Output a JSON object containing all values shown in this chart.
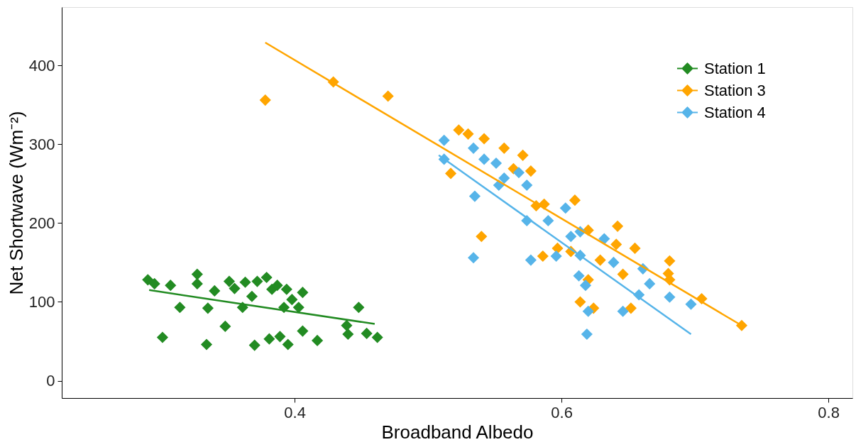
{
  "chart_data": {
    "type": "scatter",
    "xlabel": "Broadband Albedo",
    "ylabel": "Net Shortwave (Wm⁻²)",
    "xlim": [
      0.2255,
      0.818
    ],
    "ylim": [
      -22,
      474
    ],
    "xticks": [
      0.4,
      0.6,
      0.8
    ],
    "yticks": [
      0,
      100,
      200,
      300,
      400
    ],
    "grid": false,
    "legend": "top right",
    "marker": "diamond",
    "series": [
      {
        "name": "Station 1",
        "color": "#228b22",
        "x": [
          0.29,
          0.295,
          0.307,
          0.327,
          0.327,
          0.314,
          0.301,
          0.334,
          0.335,
          0.34,
          0.348,
          0.351,
          0.355,
          0.363,
          0.368,
          0.361,
          0.372,
          0.379,
          0.383,
          0.387,
          0.394,
          0.406,
          0.392,
          0.403,
          0.398,
          0.37,
          0.381,
          0.389,
          0.395,
          0.406,
          0.417,
          0.448,
          0.439,
          0.44,
          0.454,
          0.462
        ],
        "values": [
          128,
          123,
          121,
          135,
          123,
          93,
          55,
          46,
          92,
          114,
          69,
          126,
          117,
          125,
          107,
          93,
          126,
          131,
          116,
          121,
          116,
          112,
          93,
          93,
          103,
          45,
          53,
          56,
          46,
          63,
          51,
          93,
          70,
          59,
          60,
          55
        ]
      },
      {
        "name": "Station 3",
        "color": "#ffa500",
        "x": [
          0.378,
          0.429,
          0.47,
          0.523,
          0.53,
          0.542,
          0.557,
          0.571,
          0.577,
          0.564,
          0.517,
          0.581,
          0.587,
          0.54,
          0.61,
          0.586,
          0.597,
          0.607,
          0.62,
          0.62,
          0.614,
          0.642,
          0.655,
          0.641,
          0.646,
          0.681,
          0.68,
          0.681,
          0.705,
          0.735,
          0.624,
          0.652,
          0.629
        ],
        "values": [
          356,
          379,
          361,
          318,
          313,
          307,
          295,
          286,
          266,
          269,
          263,
          222,
          224,
          183,
          229,
          158,
          168,
          164,
          191,
          128,
          100,
          196,
          168,
          173,
          135,
          152,
          136,
          128,
          104,
          70,
          92,
          92,
          153
        ]
      },
      {
        "name": "Station 4",
        "color": "#56b4e9",
        "x": [
          0.512,
          0.512,
          0.534,
          0.542,
          0.551,
          0.557,
          0.568,
          0.574,
          0.553,
          0.535,
          0.574,
          0.59,
          0.534,
          0.603,
          0.577,
          0.596,
          0.607,
          0.614,
          0.613,
          0.618,
          0.62,
          0.619,
          0.614,
          0.632,
          0.639,
          0.661,
          0.666,
          0.658,
          0.681,
          0.697,
          0.646
        ],
        "values": [
          305,
          281,
          295,
          281,
          276,
          257,
          264,
          248,
          248,
          234,
          203,
          203,
          156,
          219,
          153,
          158,
          183,
          159,
          133,
          121,
          88,
          59,
          189,
          180,
          150,
          142,
          123,
          109,
          106,
          97,
          88
        ]
      },
      {
        "color": "#228b22",
        "type": "line",
        "marker": "none",
        "x": [
          0.291,
          0.46
        ],
        "values": [
          115,
          72
        ]
      },
      {
        "color": "#ffa500",
        "type": "line",
        "marker": "none",
        "x": [
          0.378,
          0.735
        ],
        "values": [
          429,
          70
        ]
      },
      {
        "color": "#56b4e9",
        "type": "line",
        "marker": "none",
        "x": [
          0.508,
          0.697
        ],
        "values": [
          286,
          59
        ]
      }
    ]
  }
}
